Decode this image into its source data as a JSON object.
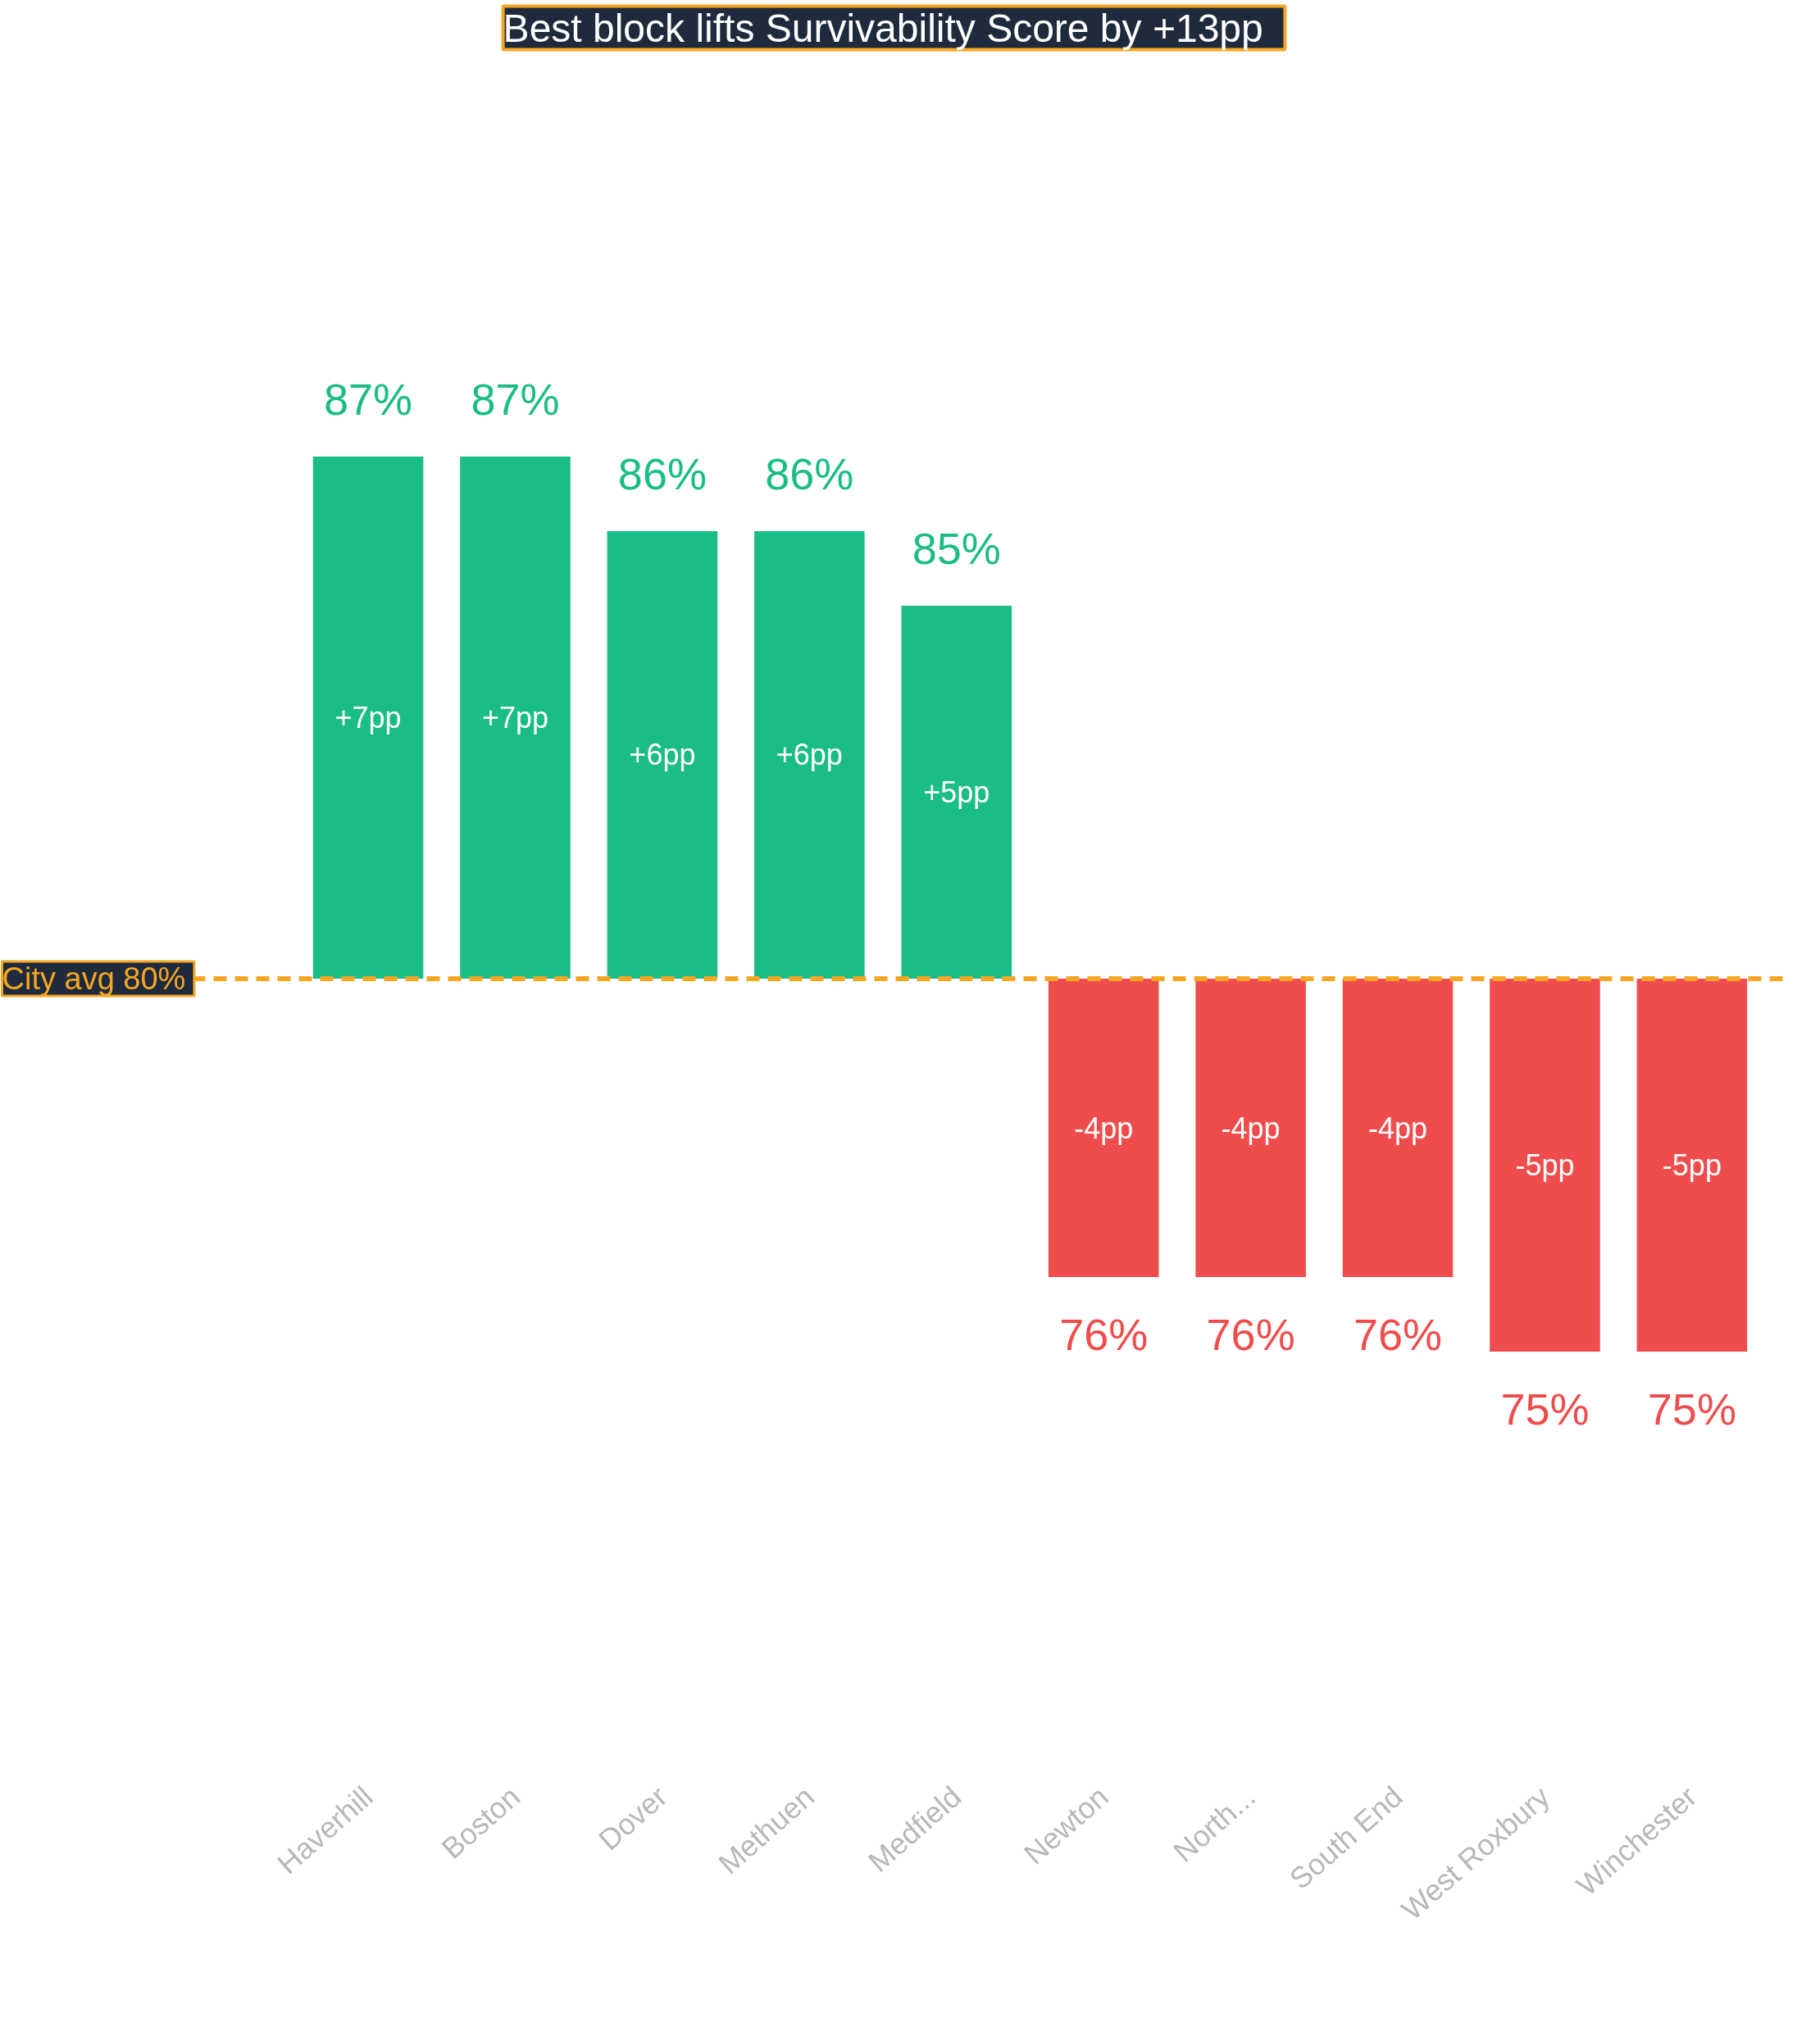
{
  "chart_data": {
    "type": "bar",
    "title": "Best block lifts Survivability Score by +13pp",
    "categories": [
      "Haverhill",
      "Boston",
      "Dover",
      "Methuen",
      "Medfield",
      "Newton",
      "North...",
      "South End",
      "West Roxbury",
      "Winchester"
    ],
    "values": [
      7,
      7,
      6,
      6,
      5,
      -4,
      -4,
      -4,
      -5,
      -5
    ],
    "colors": [
      "#1abc87",
      "#1abc87",
      "#1abc87",
      "#1abc87",
      "#1abc87",
      "#ef4d4d",
      "#ef4d4d",
      "#ef4d4d",
      "#ef4d4d",
      "#ef4d4d"
    ],
    "value_labels": [
      "+7pp",
      "+7pp",
      "+6pp",
      "+6pp",
      "+5pp",
      "-4pp",
      "-4pp",
      "-4pp",
      "-5pp",
      "-5pp"
    ],
    "annotations": [
      "87%",
      "87%",
      "86%",
      "86%",
      "85%",
      "76%",
      "76%",
      "76%",
      "75%",
      "75%"
    ],
    "ref_lines": [
      {
        "axis": "y",
        "value": 0,
        "label": "City avg  80%",
        "color": "#f5a623",
        "line_style": "dashed"
      }
    ],
    "tick_labels": "x",
    "grid": false
  }
}
